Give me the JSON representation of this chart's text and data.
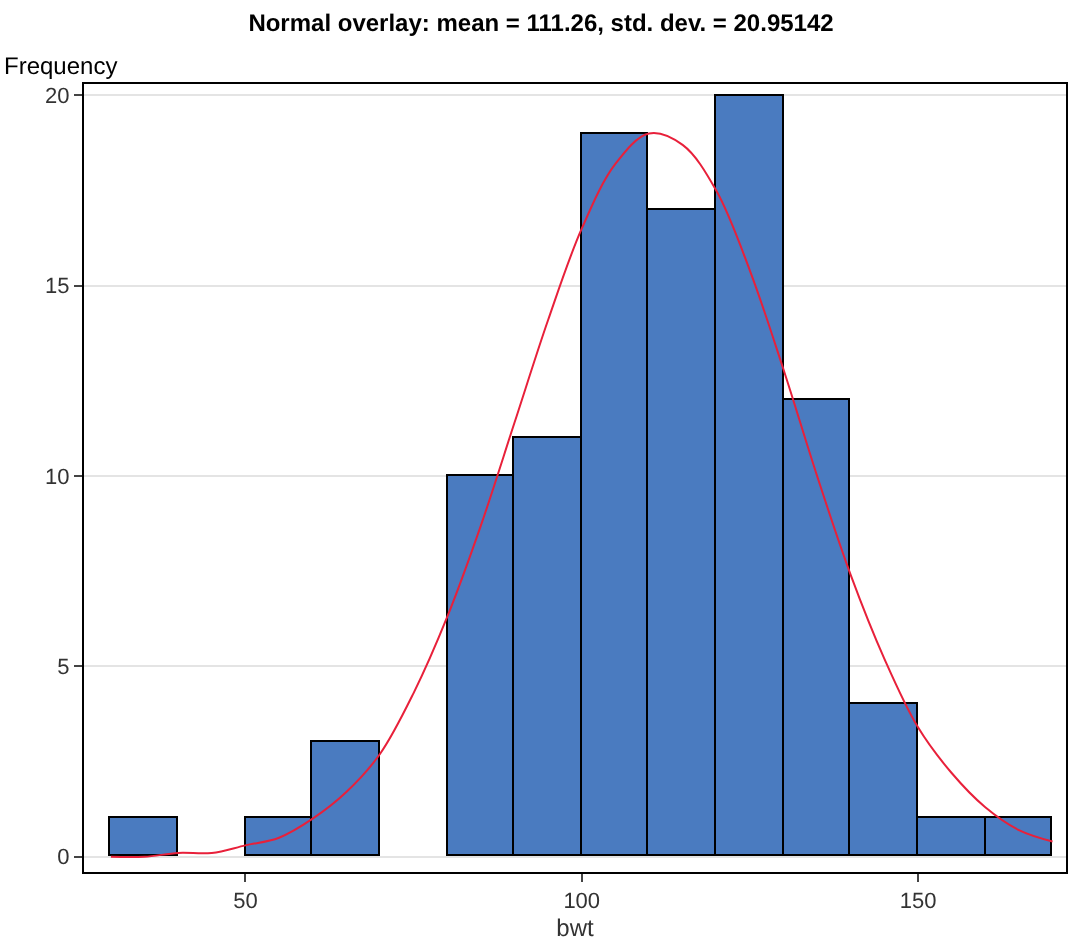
{
  "chart_data": {
    "type": "histogram",
    "title": "Normal overlay: mean = 111.26, std. dev. = 20.95142",
    "xlabel": "bwt",
    "ylabel": "Frequency",
    "series": [
      {
        "color": "#4a7bc0",
        "bins": [
          30,
          40,
          50,
          60,
          70,
          80,
          90,
          100,
          110,
          120,
          130,
          140,
          150,
          160,
          170
        ],
        "values": [
          1,
          0,
          1,
          3,
          0,
          10,
          11,
          19,
          17,
          20,
          12,
          4,
          1,
          1
        ]
      },
      {
        "type": "line",
        "color": "#e8203a",
        "x": [
          30,
          35,
          40,
          45,
          50,
          55,
          60,
          65,
          70,
          75,
          80,
          85,
          90,
          95,
          100,
          105,
          110,
          115,
          120,
          125,
          130,
          135,
          140,
          145,
          150,
          155,
          160,
          165,
          170
        ],
        "values": [
          0,
          0,
          0.1,
          0.1,
          0.3,
          0.5,
          1,
          1.7,
          2.7,
          4.3,
          6.3,
          8.7,
          11.4,
          14.1,
          16.5,
          18.2,
          19,
          18.7,
          17.5,
          15.4,
          12.8,
          10,
          7.4,
          5.2,
          3.4,
          2.2,
          1.3,
          0.7,
          0.4
        ]
      }
    ],
    "xlim": [
      26,
      172
    ],
    "xticks": [
      50,
      100,
      150
    ],
    "ylim": [
      -0.4,
      20.3
    ],
    "yticks": [
      0,
      5,
      10,
      15,
      20
    ],
    "grid": "y",
    "marker": "none",
    "line_style": "solid"
  }
}
